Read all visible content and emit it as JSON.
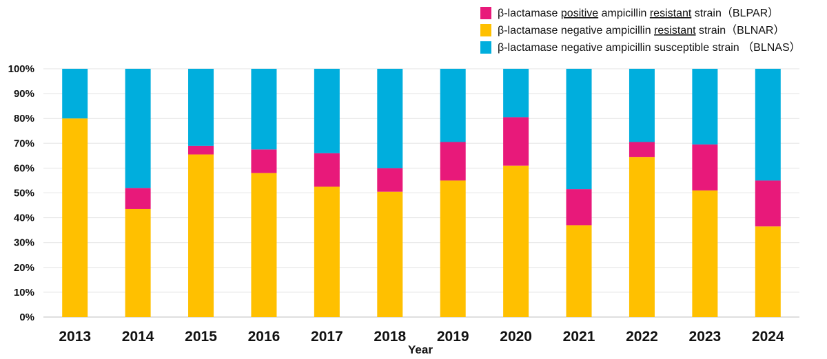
{
  "chart_data": {
    "type": "bar",
    "stacked": true,
    "percent_stacked": true,
    "categories": [
      "2013",
      "2014",
      "2015",
      "2016",
      "2017",
      "2018",
      "2019",
      "2020",
      "2021",
      "2022",
      "2023",
      "2024"
    ],
    "xlabel": "Year",
    "ylabel": "",
    "ylim": [
      0,
      100
    ],
    "yticks": [
      "0%",
      "10%",
      "20%",
      "30%",
      "40%",
      "50%",
      "60%",
      "70%",
      "80%",
      "90%",
      "100%"
    ],
    "grid": true,
    "legend_position": "top-right",
    "series": [
      {
        "name": "β-lactamase negative ampicillin resistant strain（BLNAR）",
        "color": "#FFC000",
        "values": [
          80,
          43.5,
          65.5,
          58,
          52.5,
          50.5,
          55,
          61,
          37,
          64.5,
          51,
          36.5
        ]
      },
      {
        "name": "β-lactamase positive ampicillin resistant strain（BLPAR）",
        "color": "#E8197A",
        "values": [
          0,
          8.5,
          3.5,
          9.5,
          13.5,
          9.5,
          15.5,
          19.5,
          14.5,
          6,
          18.5,
          18.5
        ]
      },
      {
        "name": "β-lactamase negative ampicillin susceptible strain （BLNAS）",
        "color": "#00AEDD",
        "values": [
          20,
          48,
          31,
          32.5,
          34,
          40,
          29.5,
          19.5,
          48.5,
          29.5,
          30.5,
          45
        ]
      }
    ]
  },
  "legend": [
    {
      "key": "BLPAR",
      "color": "#E8197A",
      "parts": [
        {
          "text": "β-lactamase ",
          "u": false
        },
        {
          "text": "positive",
          "u": true
        },
        {
          "text": " ampicillin ",
          "u": false
        },
        {
          "text": "resistant",
          "u": true
        },
        {
          "text": " strain（BLPAR）",
          "u": false
        }
      ]
    },
    {
      "key": "BLNAR",
      "color": "#FFC000",
      "parts": [
        {
          "text": "β-lactamase negative ampicillin ",
          "u": false
        },
        {
          "text": "resistant",
          "u": true
        },
        {
          "text": " strain（BLNAR）",
          "u": false
        }
      ]
    },
    {
      "key": "BLNAS",
      "color": "#00AEDD",
      "parts": [
        {
          "text": "β-lactamase negative ampicillin susceptible strain （BLNAS）",
          "u": false
        }
      ]
    }
  ]
}
